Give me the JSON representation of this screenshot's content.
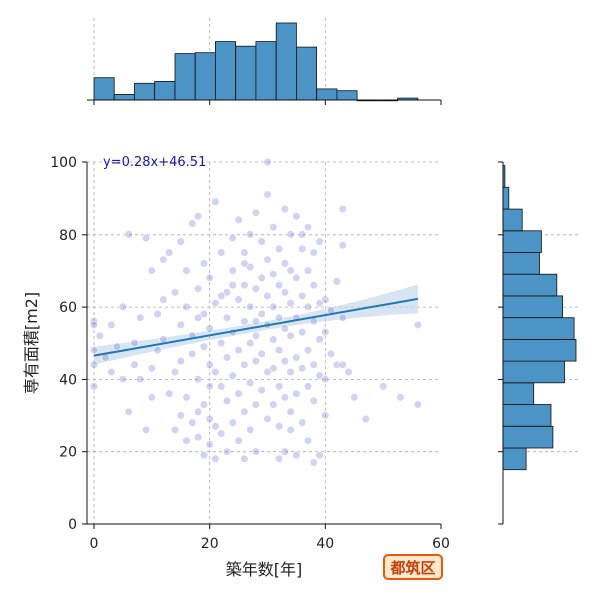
{
  "chart_data": {
    "type": "scatter",
    "xlabel": "築年数[年]",
    "ylabel": "専有面積[m2]",
    "xlim": [
      0,
      60
    ],
    "ylim": [
      0,
      100
    ],
    "x_ticks": [
      "0",
      "20",
      "40",
      "60"
    ],
    "y_ticks": [
      "0",
      "20",
      "40",
      "60",
      "80",
      "100"
    ],
    "grid": true,
    "regression": {
      "equation": "y=0.28x+46.51",
      "slope": 0.28,
      "intercept": 46.51,
      "x_range": [
        0,
        56
      ],
      "ci_halfwidth_start": 2.5,
      "ci_halfwidth_mid": 1.2,
      "ci_halfwidth_end": 4.0
    },
    "colors": {
      "points": "#6a6ad0",
      "regression_line": "#1f77b4",
      "ci_band": "#bcd4ea",
      "histogram_fill": "#4c93c6",
      "histogram_edge": "#111111",
      "grid": "#aaaaaa"
    },
    "points": [
      [
        0,
        56
      ],
      [
        0,
        55
      ],
      [
        0,
        44
      ],
      [
        0,
        38
      ],
      [
        0,
        48
      ],
      [
        1,
        52
      ],
      [
        2,
        46
      ],
      [
        3,
        55
      ],
      [
        4,
        49
      ],
      [
        5,
        60
      ],
      [
        6,
        80
      ],
      [
        6,
        31
      ],
      [
        7,
        50
      ],
      [
        7,
        44
      ],
      [
        8,
        57
      ],
      [
        9,
        26
      ],
      [
        9,
        79
      ],
      [
        10,
        70
      ],
      [
        10,
        43
      ],
      [
        11,
        58
      ],
      [
        11,
        48
      ],
      [
        12,
        51
      ],
      [
        12,
        73
      ],
      [
        13,
        36
      ],
      [
        13,
        75
      ],
      [
        14,
        64
      ],
      [
        14,
        42
      ],
      [
        14,
        26
      ],
      [
        15,
        55
      ],
      [
        15,
        30
      ],
      [
        15,
        78
      ],
      [
        15,
        45
      ],
      [
        16,
        60
      ],
      [
        16,
        35
      ],
      [
        16,
        23
      ],
      [
        17,
        83
      ],
      [
        17,
        52
      ],
      [
        17,
        47
      ],
      [
        17,
        28
      ],
      [
        18,
        85
      ],
      [
        18,
        65
      ],
      [
        18,
        40
      ],
      [
        18,
        31
      ],
      [
        18,
        24
      ],
      [
        19,
        72
      ],
      [
        19,
        58
      ],
      [
        19,
        49
      ],
      [
        19,
        33
      ],
      [
        19,
        19
      ],
      [
        20,
        68
      ],
      [
        20,
        54
      ],
      [
        20,
        44
      ],
      [
        20,
        29
      ],
      [
        20,
        22
      ],
      [
        21,
        89
      ],
      [
        21,
        61
      ],
      [
        21,
        42
      ],
      [
        21,
        27
      ],
      [
        21,
        18
      ],
      [
        22,
        75
      ],
      [
        22,
        50
      ],
      [
        22,
        38
      ],
      [
        22,
        25
      ],
      [
        23,
        64
      ],
      [
        23,
        57
      ],
      [
        23,
        46
      ],
      [
        23,
        34
      ],
      [
        23,
        20
      ],
      [
        24,
        79
      ],
      [
        24,
        70
      ],
      [
        24,
        53
      ],
      [
        24,
        41
      ],
      [
        24,
        28
      ],
      [
        25,
        84
      ],
      [
        25,
        62
      ],
      [
        25,
        48
      ],
      [
        25,
        36
      ],
      [
        25,
        23
      ],
      [
        26,
        75
      ],
      [
        26,
        66
      ],
      [
        26,
        56
      ],
      [
        26,
        44
      ],
      [
        26,
        31
      ],
      [
        27,
        80
      ],
      [
        27,
        71
      ],
      [
        27,
        60
      ],
      [
        27,
        50
      ],
      [
        27,
        39
      ],
      [
        27,
        26
      ],
      [
        28,
        86
      ],
      [
        28,
        65
      ],
      [
        28,
        52
      ],
      [
        28,
        45
      ],
      [
        28,
        33
      ],
      [
        28,
        20
      ],
      [
        29,
        78
      ],
      [
        29,
        68
      ],
      [
        29,
        58
      ],
      [
        29,
        47
      ],
      [
        29,
        37
      ],
      [
        30,
        91
      ],
      [
        30,
        73
      ],
      [
        30,
        63
      ],
      [
        30,
        55
      ],
      [
        30,
        42
      ],
      [
        30,
        29
      ],
      [
        31,
        82
      ],
      [
        31,
        69
      ],
      [
        31,
        60
      ],
      [
        31,
        51
      ],
      [
        31,
        43
      ],
      [
        31,
        33
      ],
      [
        32,
        76
      ],
      [
        32,
        66
      ],
      [
        32,
        57
      ],
      [
        32,
        48
      ],
      [
        32,
        38
      ],
      [
        32,
        27
      ],
      [
        33,
        87
      ],
      [
        33,
        72
      ],
      [
        33,
        64
      ],
      [
        33,
        54
      ],
      [
        33,
        45
      ],
      [
        33,
        35
      ],
      [
        33,
        20
      ],
      [
        34,
        80
      ],
      [
        34,
        70
      ],
      [
        34,
        61
      ],
      [
        34,
        52
      ],
      [
        34,
        42
      ],
      [
        34,
        31
      ],
      [
        35,
        85
      ],
      [
        35,
        68
      ],
      [
        35,
        57
      ],
      [
        35,
        46
      ],
      [
        35,
        36
      ],
      [
        35,
        19
      ],
      [
        36,
        76
      ],
      [
        36,
        63
      ],
      [
        36,
        53
      ],
      [
        36,
        43
      ],
      [
        36,
        28
      ],
      [
        37,
        82
      ],
      [
        37,
        70
      ],
      [
        37,
        60
      ],
      [
        37,
        48
      ],
      [
        37,
        38
      ],
      [
        37,
        23
      ],
      [
        38,
        66
      ],
      [
        38,
        56
      ],
      [
        38,
        44
      ],
      [
        38,
        34
      ],
      [
        38,
        17
      ],
      [
        39,
        78
      ],
      [
        39,
        61
      ],
      [
        39,
        51
      ],
      [
        39,
        41
      ],
      [
        39,
        19
      ],
      [
        40,
        62
      ],
      [
        40,
        53
      ],
      [
        40,
        40
      ],
      [
        41,
        59
      ],
      [
        41,
        47
      ],
      [
        42,
        67
      ],
      [
        42,
        44
      ],
      [
        43,
        87
      ],
      [
        43,
        77
      ],
      [
        43,
        57
      ],
      [
        43,
        44
      ],
      [
        44,
        42
      ],
      [
        45,
        35
      ],
      [
        47,
        29
      ],
      [
        50,
        38
      ],
      [
        53,
        35
      ],
      [
        56,
        55
      ],
      [
        56,
        33
      ],
      [
        30,
        100
      ],
      [
        28,
        56
      ],
      [
        22,
        63
      ],
      [
        24,
        66
      ],
      [
        26,
        72
      ],
      [
        18,
        57
      ],
      [
        16,
        70
      ],
      [
        12,
        62
      ],
      [
        10,
        35
      ],
      [
        8,
        40
      ],
      [
        5,
        40
      ],
      [
        3,
        42
      ],
      [
        36,
        80
      ],
      [
        38,
        75
      ],
      [
        40,
        30
      ],
      [
        34,
        26
      ],
      [
        32,
        18
      ],
      [
        26,
        18
      ],
      [
        20,
        38
      ]
    ],
    "top_histogram": {
      "bin_edges": [
        0,
        3.5,
        7,
        10.5,
        14,
        17.5,
        21,
        24.5,
        28,
        31.5,
        35,
        38.5,
        42,
        45.5,
        49,
        52.5,
        56
      ],
      "counts": [
        24,
        6,
        18,
        20,
        50,
        51,
        63,
        58,
        63,
        83,
        57,
        12,
        10,
        0,
        0,
        2
      ]
    },
    "right_histogram": {
      "bin_edges": [
        15,
        21,
        27,
        33,
        39,
        45,
        51,
        57,
        63,
        69,
        75,
        81,
        87,
        93,
        99
      ],
      "counts": [
        12,
        26,
        25,
        16,
        32,
        38,
        37,
        31,
        28,
        19,
        20,
        10,
        3,
        1
      ]
    }
  },
  "badge": {
    "label": "都筑区"
  }
}
